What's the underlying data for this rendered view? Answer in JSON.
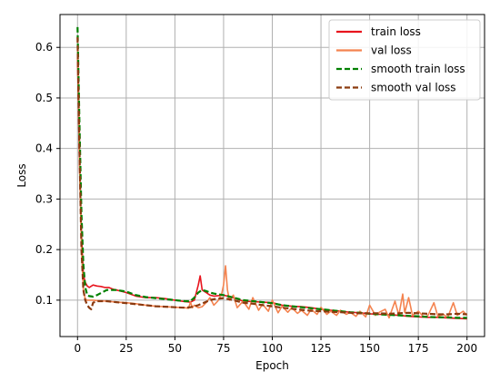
{
  "chart_data": {
    "type": "line",
    "xlabel": "Epoch",
    "ylabel": "Loss",
    "xlim": [
      -9,
      209
    ],
    "ylim": [
      0.028,
      0.665
    ],
    "xticks": [
      0,
      25,
      50,
      75,
      100,
      125,
      150,
      175,
      200
    ],
    "xtick_labels": [
      "0",
      "25",
      "50",
      "75",
      "100",
      "125",
      "150",
      "175",
      "200"
    ],
    "yticks": [
      0.1,
      0.2,
      0.3,
      0.4,
      0.5,
      0.6
    ],
    "ytick_labels": [
      "0.1",
      "0.2",
      "0.3",
      "0.4",
      "0.5",
      "0.6"
    ],
    "grid": true,
    "legend_position": "top-right",
    "series": [
      {
        "name": "train loss",
        "color": "#e8141d",
        "dash": "solid",
        "x": [
          0,
          1,
          2,
          3,
          4,
          5,
          6,
          8,
          10,
          12,
          14,
          16,
          18,
          20,
          25,
          30,
          35,
          40,
          45,
          50,
          55,
          58,
          60,
          62,
          63,
          64,
          66,
          68,
          70,
          75,
          80,
          85,
          90,
          95,
          100,
          105,
          110,
          115,
          120,
          125,
          130,
          135,
          140,
          145,
          150,
          155,
          160,
          165,
          170,
          175,
          180,
          185,
          190,
          195,
          200
        ],
        "y": [
          0.58,
          0.37,
          0.23,
          0.15,
          0.135,
          0.128,
          0.125,
          0.13,
          0.128,
          0.127,
          0.125,
          0.125,
          0.122,
          0.12,
          0.115,
          0.108,
          0.105,
          0.105,
          0.103,
          0.1,
          0.097,
          0.096,
          0.1,
          0.13,
          0.148,
          0.12,
          0.115,
          0.11,
          0.108,
          0.11,
          0.105,
          0.098,
          0.097,
          0.096,
          0.095,
          0.09,
          0.088,
          0.087,
          0.085,
          0.082,
          0.08,
          0.078,
          0.076,
          0.075,
          0.073,
          0.072,
          0.071,
          0.07,
          0.068,
          0.067,
          0.066,
          0.066,
          0.065,
          0.064,
          0.063
        ]
      },
      {
        "name": "val loss",
        "color": "#f4834f",
        "dash": "solid",
        "x": [
          0,
          1,
          2,
          3,
          4,
          5,
          6,
          8,
          10,
          15,
          20,
          25,
          30,
          35,
          40,
          45,
          50,
          55,
          57,
          58,
          59,
          60,
          62,
          64,
          66,
          68,
          70,
          72,
          74,
          75,
          76,
          77,
          78,
          80,
          82,
          85,
          88,
          90,
          93,
          95,
          98,
          100,
          103,
          105,
          108,
          110,
          113,
          115,
          118,
          120,
          123,
          125,
          128,
          130,
          133,
          135,
          138,
          140,
          143,
          145,
          148,
          150,
          153,
          155,
          158,
          160,
          163,
          165,
          167,
          168,
          170,
          172,
          175,
          178,
          180,
          183,
          185,
          188,
          190,
          193,
          195,
          198,
          200
        ],
        "y": [
          0.6,
          0.38,
          0.2,
          0.12,
          0.102,
          0.1,
          0.1,
          0.1,
          0.099,
          0.098,
          0.096,
          0.095,
          0.093,
          0.09,
          0.088,
          0.087,
          0.086,
          0.085,
          0.084,
          0.096,
          0.085,
          0.09,
          0.085,
          0.087,
          0.095,
          0.105,
          0.09,
          0.098,
          0.112,
          0.13,
          0.168,
          0.12,
          0.1,
          0.11,
          0.085,
          0.098,
          0.082,
          0.105,
          0.08,
          0.092,
          0.078,
          0.1,
          0.075,
          0.088,
          0.076,
          0.085,
          0.074,
          0.08,
          0.07,
          0.082,
          0.072,
          0.086,
          0.072,
          0.078,
          0.07,
          0.08,
          0.072,
          0.076,
          0.068,
          0.078,
          0.067,
          0.09,
          0.07,
          0.076,
          0.082,
          0.065,
          0.098,
          0.07,
          0.112,
          0.075,
          0.105,
          0.07,
          0.078,
          0.066,
          0.07,
          0.095,
          0.068,
          0.072,
          0.065,
          0.095,
          0.07,
          0.078,
          0.07
        ]
      },
      {
        "name": "smooth train loss",
        "color": "#008000",
        "dash": "dashed",
        "x": [
          0,
          1,
          2,
          3,
          4,
          5,
          6,
          8,
          10,
          15,
          20,
          25,
          30,
          35,
          40,
          45,
          50,
          55,
          58,
          60,
          62,
          64,
          66,
          68,
          70,
          75,
          80,
          85,
          90,
          95,
          100,
          105,
          110,
          115,
          120,
          125,
          130,
          135,
          140,
          145,
          150,
          155,
          160,
          165,
          170,
          175,
          180,
          185,
          190,
          195,
          200
        ],
        "y": [
          0.64,
          0.45,
          0.27,
          0.17,
          0.125,
          0.11,
          0.108,
          0.107,
          0.11,
          0.12,
          0.12,
          0.117,
          0.11,
          0.106,
          0.104,
          0.102,
          0.1,
          0.098,
          0.098,
          0.105,
          0.115,
          0.12,
          0.118,
          0.115,
          0.113,
          0.11,
          0.105,
          0.1,
          0.098,
          0.096,
          0.094,
          0.09,
          0.088,
          0.086,
          0.084,
          0.082,
          0.08,
          0.078,
          0.076,
          0.075,
          0.073,
          0.072,
          0.071,
          0.07,
          0.069,
          0.068,
          0.067,
          0.066,
          0.066,
          0.065,
          0.065
        ]
      },
      {
        "name": "smooth val loss",
        "color": "#8b3a0f",
        "dash": "dashed",
        "x": [
          0,
          1,
          2,
          3,
          4,
          5,
          6,
          7,
          8,
          10,
          15,
          20,
          25,
          30,
          35,
          40,
          45,
          50,
          55,
          58,
          60,
          62,
          65,
          68,
          70,
          75,
          80,
          85,
          90,
          95,
          100,
          105,
          110,
          115,
          120,
          125,
          130,
          135,
          140,
          145,
          150,
          155,
          160,
          165,
          170,
          175,
          180,
          185,
          190,
          195,
          200
        ],
        "y": [
          0.62,
          0.4,
          0.2,
          0.12,
          0.1,
          0.09,
          0.085,
          0.082,
          0.095,
          0.098,
          0.098,
          0.096,
          0.094,
          0.092,
          0.09,
          0.088,
          0.087,
          0.086,
          0.085,
          0.086,
          0.088,
          0.09,
          0.095,
          0.1,
          0.102,
          0.104,
          0.1,
          0.095,
          0.093,
          0.09,
          0.088,
          0.085,
          0.083,
          0.081,
          0.079,
          0.078,
          0.077,
          0.076,
          0.075,
          0.074,
          0.074,
          0.074,
          0.073,
          0.074,
          0.075,
          0.074,
          0.073,
          0.072,
          0.072,
          0.073,
          0.072
        ]
      }
    ]
  }
}
